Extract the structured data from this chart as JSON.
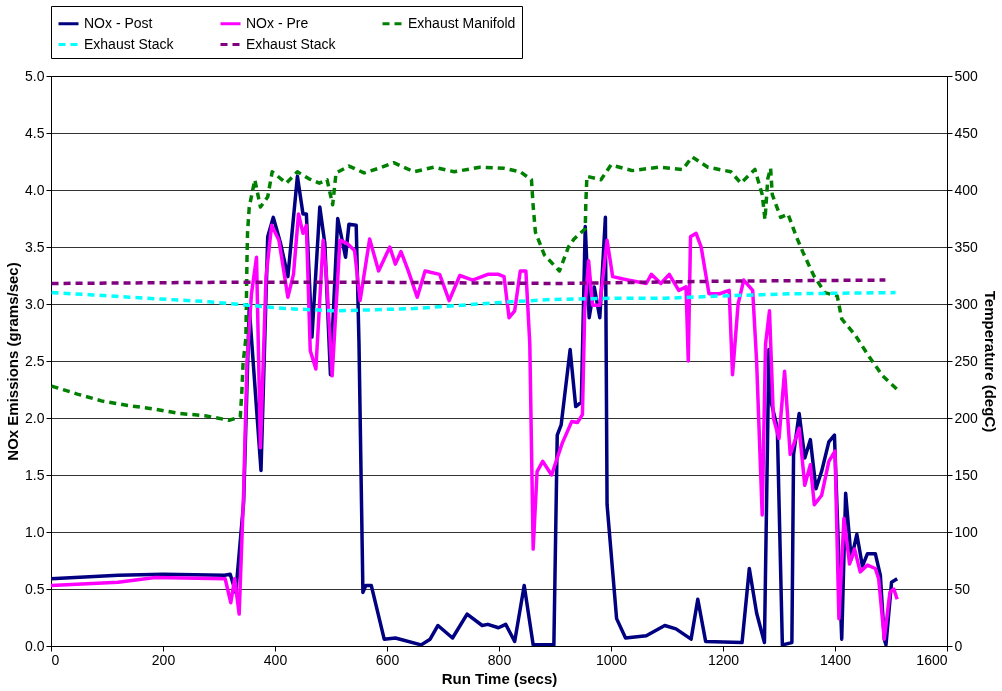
{
  "chart_data": {
    "type": "line",
    "xlabel": "Run Time (secs)",
    "ylabel": "NOx Emissions (grams/sec)",
    "y2label": "Temperature (degC)",
    "xlim": [
      0,
      1600
    ],
    "xticks": [
      0,
      200,
      400,
      600,
      800,
      1000,
      1200,
      1400,
      1600
    ],
    "ylim": [
      0,
      5
    ],
    "yticks": [
      {
        "value": 0,
        "label": "0.0"
      },
      0.5,
      {
        "value": 1,
        "label": "1.0"
      },
      1.5,
      {
        "value": 2,
        "label": "2.0"
      },
      2.5,
      {
        "value": 3,
        "label": "3.0"
      },
      3.5,
      {
        "value": 4,
        "label": "4.0"
      },
      4.5,
      {
        "value": 5,
        "label": "5.0"
      }
    ],
    "y2lim": [
      0,
      500
    ],
    "y2ticks": [
      0,
      50,
      100,
      150,
      200,
      250,
      300,
      350,
      400,
      450,
      500
    ],
    "grid": "y",
    "legend": "top",
    "series": [
      {
        "name": "NOx - Post",
        "color": "#000080",
        "line_style": "solid",
        "x": [
          0,
          120,
          200,
          310,
          320,
          330,
          344,
          354,
          375,
          387,
          397,
          410,
          423,
          440,
          450,
          456,
          466,
          480,
          489,
          499,
          512,
          526,
          532,
          545,
          550,
          557,
          562,
          572,
          595,
          615,
          661,
          677,
          691,
          717,
          743,
          770,
          780,
          799,
          812,
          828,
          845,
          861,
          898,
          904,
          911,
          927,
          937,
          947,
          954,
          961,
          970,
          980,
          990,
          993,
          1010,
          1026,
          1063,
          1096,
          1116,
          1143,
          1155,
          1169,
          1234,
          1247,
          1260,
          1274,
          1282,
          1287,
          1297,
          1306,
          1323,
          1326,
          1336,
          1346,
          1356,
          1366,
          1376,
          1389,
          1399,
          1406,
          1412,
          1419,
          1429,
          1439,
          1449,
          1458,
          1472,
          1481,
          1488,
          1491,
          1501,
          1511
        ],
        "values": [
          0.59,
          0.62,
          0.63,
          0.62,
          0.63,
          0.47,
          1.26,
          2.97,
          1.54,
          3.59,
          3.76,
          3.53,
          3.24,
          4.12,
          3.79,
          3.79,
          2.71,
          3.85,
          3.53,
          2.38,
          3.75,
          3.41,
          3.7,
          3.69,
          2.65,
          0.47,
          0.53,
          0.53,
          0.06,
          0.07,
          0.01,
          0.06,
          0.18,
          0.07,
          0.28,
          0.18,
          0.19,
          0.16,
          0.19,
          0.04,
          0.53,
          0.01,
          0.01,
          1.85,
          1.94,
          2.6,
          2.1,
          2.14,
          3.68,
          2.88,
          3.15,
          2.88,
          3.76,
          1.24,
          0.24,
          0.07,
          0.09,
          0.18,
          0.15,
          0.06,
          0.41,
          0.04,
          0.03,
          0.68,
          0.29,
          0.03,
          2.6,
          2.12,
          1.91,
          0.01,
          0.03,
          1.68,
          2.04,
          1.65,
          1.81,
          1.38,
          1.53,
          1.79,
          1.85,
          0.88,
          0.06,
          1.34,
          0.76,
          0.98,
          0.7,
          0.81,
          0.81,
          0.62,
          0.06,
          0.01,
          0.56,
          0.59
        ]
      },
      {
        "name": "NOx - Pre",
        "color": "#ff00ff",
        "line_style": "solid",
        "x": [
          0,
          120,
          186,
          311,
          321,
          328,
          336,
          344,
          350,
          358,
          367,
          374,
          384,
          394,
          407,
          423,
          433,
          442,
          450,
          456,
          463,
          473,
          486,
          492,
          502,
          516,
          529,
          542,
          552,
          569,
          585,
          605,
          615,
          625,
          638,
          654,
          668,
          694,
          711,
          730,
          753,
          780,
          799,
          809,
          818,
          828,
          838,
          848,
          855,
          861,
          868,
          878,
          894,
          904,
          913,
          930,
          940,
          949,
          953,
          960,
          967,
          980,
          993,
          1003,
          1030,
          1063,
          1072,
          1089,
          1104,
          1121,
          1134,
          1138,
          1142,
          1152,
          1161,
          1175,
          1194,
          1211,
          1217,
          1227,
          1237,
          1253,
          1260,
          1270,
          1276,
          1283,
          1290,
          1300,
          1310,
          1320,
          1336,
          1346,
          1356,
          1363,
          1376,
          1389,
          1400,
          1407,
          1416,
          1426,
          1435,
          1445,
          1458,
          1472,
          1478,
          1488,
          1498,
          1505,
          1511
        ],
        "values": [
          0.53,
          0.56,
          0.6,
          0.59,
          0.38,
          0.59,
          0.28,
          1.35,
          2.5,
          3.09,
          3.41,
          1.74,
          3.24,
          3.69,
          3.56,
          3.06,
          3.26,
          3.79,
          3.62,
          3.69,
          2.59,
          2.43,
          3.56,
          3.24,
          2.37,
          3.56,
          3.53,
          3.47,
          3.03,
          3.57,
          3.29,
          3.5,
          3.35,
          3.46,
          3.29,
          3.06,
          3.29,
          3.26,
          3.03,
          3.25,
          3.21,
          3.26,
          3.26,
          3.24,
          2.88,
          2.94,
          3.29,
          3.29,
          2.65,
          0.85,
          1.53,
          1.62,
          1.5,
          1.65,
          1.78,
          1.97,
          1.96,
          2.03,
          2.94,
          3.38,
          2.99,
          2.99,
          3.56,
          3.24,
          3.21,
          3.18,
          3.26,
          3.18,
          3.26,
          3.12,
          3.15,
          2.5,
          3.59,
          3.62,
          3.5,
          3.09,
          3.09,
          3.12,
          2.38,
          3.0,
          3.21,
          3.12,
          2.5,
          1.15,
          2.65,
          2.94,
          2.0,
          1.82,
          2.41,
          1.68,
          1.91,
          1.41,
          1.59,
          1.24,
          1.32,
          1.62,
          1.71,
          0.24,
          1.12,
          0.72,
          0.85,
          0.65,
          0.71,
          0.68,
          0.59,
          0.06,
          0.47,
          0.5,
          0.41
        ]
      },
      {
        "name": "Exhaust Manifold",
        "color": "#008000",
        "line_style": "dashed",
        "axis": "y2",
        "x": [
          1,
          47,
          90,
          137,
          183,
          229,
          275,
          318,
          338,
          341,
          343,
          348,
          350,
          351,
          354,
          364,
          374,
          387,
          395,
          420,
          440,
          460,
          479,
          493,
          503,
          509,
          532,
          559,
          585,
          612,
          648,
          684,
          720,
          766,
          809,
          838,
          858,
          861,
          865,
          881,
          908,
          924,
          934,
          954,
          955,
          957,
          982,
          1000,
          1038,
          1085,
          1128,
          1145,
          1173,
          1214,
          1232,
          1257,
          1270,
          1275,
          1280,
          1285,
          1288,
          1303,
          1316,
          1331,
          1344,
          1362,
          1382,
          1404,
          1412,
          1437,
          1458,
          1485,
          1511
        ],
        "values": [
          228,
          221,
          215,
          211,
          208,
          204,
          202,
          198,
          201,
          225,
          248,
          270,
          340,
          363,
          385,
          409,
          385,
          394,
          416,
          406,
          416,
          410,
          406,
          409,
          387,
          415,
          421,
          415,
          419,
          424,
          416,
          420,
          416,
          420,
          419,
          416,
          409,
          386,
          363,
          343,
          329,
          350,
          357,
          366,
          388,
          412,
          409,
          422,
          417,
          420,
          418,
          429,
          420,
          416,
          406,
          418,
          396,
          374,
          410,
          419,
          396,
          376,
          379,
          359,
          344,
          325,
          310,
          307,
          287,
          272,
          256,
          237,
          225
        ]
      },
      {
        "name": "Exhaust Stack",
        "color": "#00ffff",
        "line_style": "dashed",
        "axis": "y2",
        "x": [
          1,
          74,
          140,
          209,
          282,
          351,
          417,
          512,
          648,
          793,
          822,
          894,
          997,
          1096,
          1194,
          1326,
          1508
        ],
        "values": [
          310,
          308,
          306,
          304,
          302,
          299,
          296,
          294,
          296,
          301,
          302,
          304,
          305,
          305,
          307,
          309,
          310
        ]
      },
      {
        "name": "Exhaust Stack",
        "color": "#800080",
        "line_style": "dashed",
        "axis": "y2",
        "x": [
          1,
          300,
          600,
          900,
          1200,
          1490
        ],
        "values": [
          318,
          319,
          319,
          318,
          320,
          321
        ]
      }
    ]
  }
}
